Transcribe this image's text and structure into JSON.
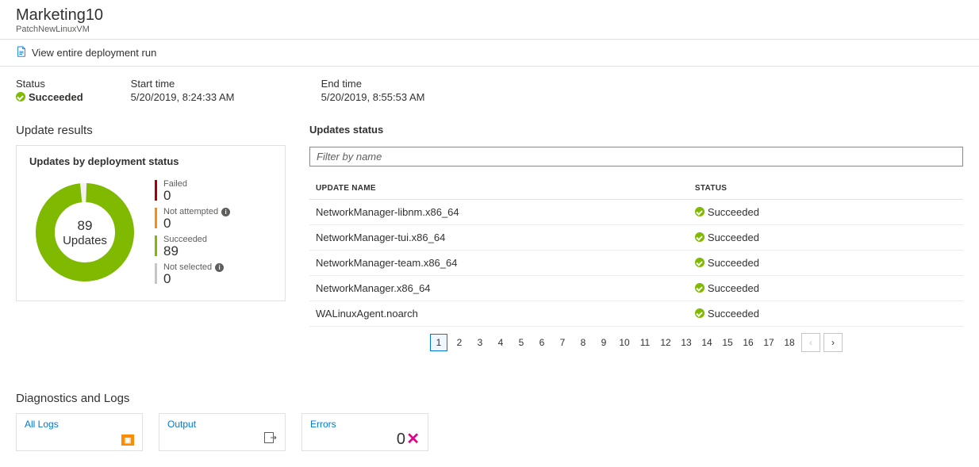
{
  "header": {
    "title": "Marketing10",
    "subtitle": "PatchNewLinuxVM"
  },
  "action_link": "View entire deployment run",
  "summary": {
    "status_label": "Status",
    "status_value": "Succeeded",
    "start_label": "Start time",
    "start_value": "5/20/2019, 8:24:33 AM",
    "end_label": "End time",
    "end_value": "5/20/2019, 8:55:53 AM"
  },
  "results": {
    "section_title": "Update results",
    "card_title": "Updates by deployment status",
    "donut": {
      "count": "89",
      "label": "Updates",
      "color": "#7fba00",
      "track_color": "#f3f2f1",
      "stroke_width": 24
    },
    "legend": [
      {
        "label": "Failed",
        "value": "0",
        "color": "#a80000",
        "info": false
      },
      {
        "label": "Not attempted",
        "value": "0",
        "color": "#ff8c00",
        "info": true
      },
      {
        "label": "Succeeded",
        "value": "89",
        "color": "#7fba00",
        "info": false
      },
      {
        "label": "Not selected",
        "value": "0",
        "color": "#c8c6c4",
        "info": true
      }
    ]
  },
  "updates": {
    "title": "Updates status",
    "filter_placeholder": "Filter by name",
    "columns": {
      "name": "UPDATE NAME",
      "status": "STATUS"
    },
    "rows": [
      {
        "name": "NetworkManager-libnm.x86_64",
        "status": "Succeeded"
      },
      {
        "name": "NetworkManager-tui.x86_64",
        "status": "Succeeded"
      },
      {
        "name": "NetworkManager-team.x86_64",
        "status": "Succeeded"
      },
      {
        "name": "NetworkManager.x86_64",
        "status": "Succeeded"
      },
      {
        "name": "WALinuxAgent.noarch",
        "status": "Succeeded"
      }
    ],
    "pages": [
      "1",
      "2",
      "3",
      "4",
      "5",
      "6",
      "7",
      "8",
      "9",
      "10",
      "11",
      "12",
      "13",
      "14",
      "15",
      "16",
      "17",
      "18"
    ],
    "active_page": "1"
  },
  "diagnostics": {
    "title": "Diagnostics and Logs",
    "all_logs": "All Logs",
    "output": "Output",
    "errors": "Errors",
    "errors_value": "0"
  }
}
